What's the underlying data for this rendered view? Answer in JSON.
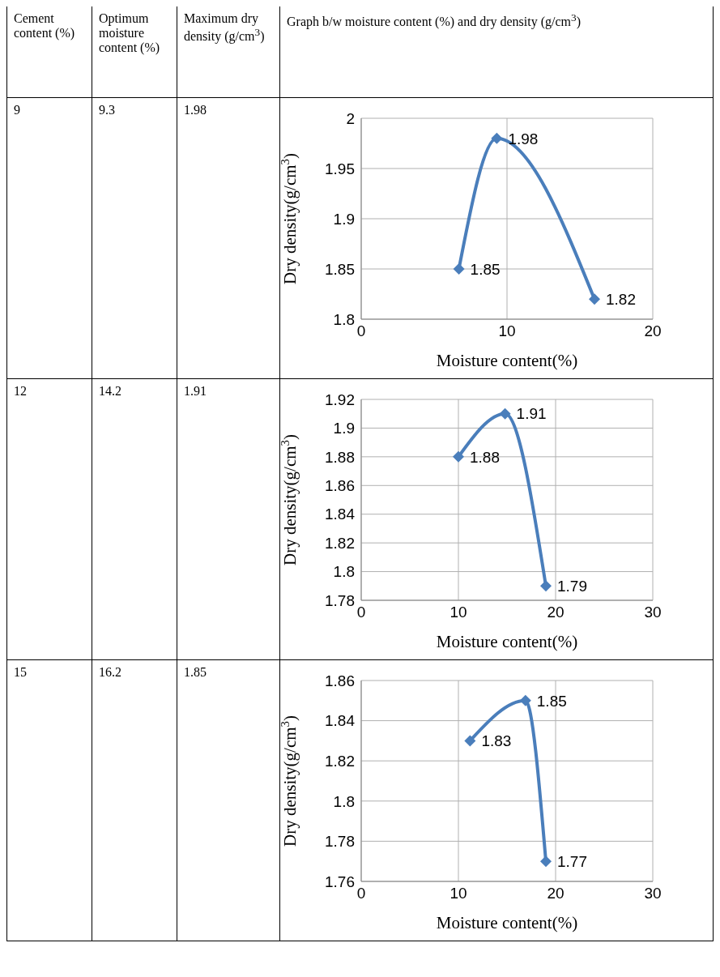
{
  "chart_data": [
    {
      "type": "other",
      "categories": [
        "Cement content (%)",
        "Optimum moisture content (%)",
        "Maximum dry density (g/cm$^{3}$)",
        "Graph b/w moisture content (%) and dry density (g/cm$^{3}$)"
      ]
    },
    {
      "type": "line",
      "annotations": [
        "9",
        "9.3",
        "1.98"
      ],
      "x": [
        6.7,
        9.3,
        16
      ],
      "values": [
        1.85,
        1.98,
        1.82
      ],
      "color": "#4a7ebb",
      "xlabel": "Moisture content(%)",
      "ylabel": "Dry density(g/cm$^{3}$)",
      "xlim": [
        0,
        20
      ],
      "xticks": [
        0,
        10,
        20
      ],
      "ylim": [
        1.8,
        2
      ],
      "yticks": [
        1.8,
        1.85,
        1.9,
        1.95,
        2
      ],
      "grid": true,
      "marker": "diamond",
      "data_labels": true
    },
    {
      "type": "line",
      "annotations": [
        "12",
        "14.2",
        "1.91"
      ],
      "x": [
        10,
        14.8,
        19
      ],
      "values": [
        1.88,
        1.91,
        1.79
      ],
      "color": "#4a7ebb",
      "xlabel": "Moisture content(%)",
      "ylabel": "Dry density(g/cm$^{3}$)",
      "xlim": [
        0,
        30
      ],
      "xticks": [
        0,
        10,
        20,
        30
      ],
      "ylim": [
        1.78,
        1.92
      ],
      "yticks": [
        1.78,
        1.8,
        1.82,
        1.84,
        1.86,
        1.88,
        1.9,
        1.92
      ],
      "grid": true,
      "marker": "diamond",
      "data_labels": true
    },
    {
      "type": "line",
      "annotations": [
        "15",
        "16.2",
        "1.85"
      ],
      "x": [
        11.2,
        16.9,
        19
      ],
      "values": [
        1.83,
        1.85,
        1.77
      ],
      "color": "#4a7ebb",
      "xlabel": "Moisture content(%)",
      "ylabel": "Dry density(g/cm$^{3}$)",
      "xlim": [
        0,
        30
      ],
      "xticks": [
        0,
        10,
        20,
        30
      ],
      "ylim": [
        1.76,
        1.86
      ],
      "yticks": [
        1.76,
        1.78,
        1.8,
        1.82,
        1.84,
        1.86
      ],
      "grid": true,
      "marker": "diamond",
      "data_labels": true
    }
  ]
}
